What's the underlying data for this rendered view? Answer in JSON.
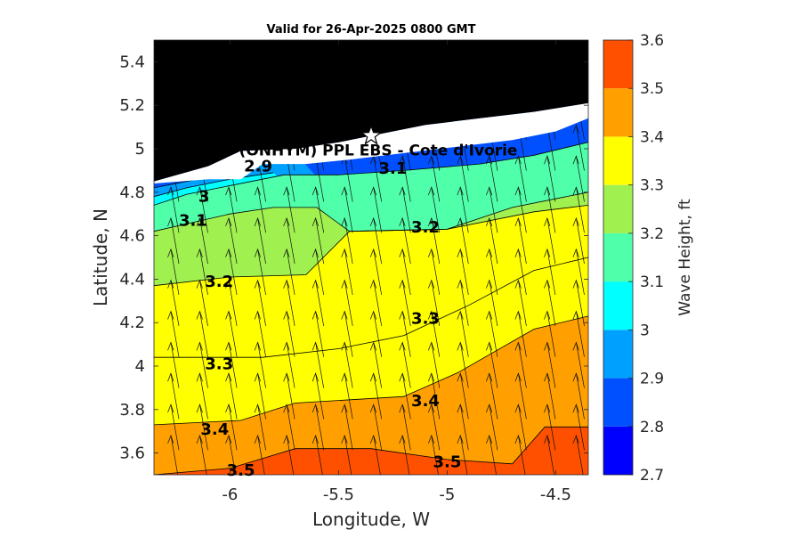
{
  "chart_data": {
    "type": "contour",
    "title": "Valid for 26-Apr-2025 0800 GMT",
    "xlabel": "Longitude, W",
    "ylabel": "Latitude, N",
    "xlim": [
      -6.35,
      -4.35
    ],
    "ylim": [
      3.5,
      5.5
    ],
    "xticks": [
      -6,
      -5.5,
      -5,
      -4.5
    ],
    "xtick_labels": [
      "-6",
      "-5.5",
      "-5",
      "-4.5"
    ],
    "yticks": [
      3.6,
      3.8,
      4,
      4.2,
      4.4,
      4.6,
      4.8,
      5,
      5.2,
      5.4
    ],
    "ytick_labels": [
      "3.6",
      "3.8",
      "4",
      "4.2",
      "4.4",
      "4.6",
      "4.8",
      "5",
      "5.2",
      "5.4"
    ],
    "colorbar": {
      "label": "Wave Height, ft",
      "ticks": [
        2.7,
        2.8,
        2.9,
        3,
        3.1,
        3.2,
        3.3,
        3.4,
        3.5,
        3.6
      ],
      "tick_labels": [
        "2.7",
        "2.8",
        "2.9",
        "3",
        "3.1",
        "3.2",
        "3.3",
        "3.4",
        "3.5",
        "3.6"
      ],
      "colors": [
        "#0000ff",
        "#0050ff",
        "#00a0ff",
        "#00ffff",
        "#50ffaa",
        "#a0f050",
        "#ffff00",
        "#ffa000",
        "#ff5000"
      ]
    },
    "contour_levels": [
      {
        "level": "2.9",
        "points": [
          [
            -6.35,
            4.82
          ],
          [
            -6.15,
            4.86
          ],
          [
            -5.95,
            4.92
          ],
          [
            -5.8,
            4.96
          ],
          [
            -5.7,
            4.98
          ]
        ]
      },
      {
        "level": "3",
        "points": [
          [
            -6.35,
            4.78
          ],
          [
            -6.2,
            4.82
          ],
          [
            -6.0,
            4.86
          ],
          [
            -5.8,
            4.89
          ]
        ]
      },
      {
        "level": "3.1",
        "points": [
          [
            -6.35,
            4.74
          ],
          [
            -6.2,
            4.79
          ],
          [
            -5.75,
            4.88
          ],
          [
            -5.5,
            4.88
          ],
          [
            -5.2,
            4.9
          ],
          [
            -4.85,
            4.93
          ],
          [
            -4.6,
            4.97
          ],
          [
            -4.35,
            5.03
          ]
        ]
      },
      {
        "level": "3.2",
        "points": [
          [
            -6.35,
            4.62
          ],
          [
            -6.0,
            4.7
          ],
          [
            -5.8,
            4.73
          ],
          [
            -5.6,
            4.73
          ],
          [
            -5.45,
            4.62
          ],
          [
            -5.0,
            4.63
          ],
          [
            -4.7,
            4.73
          ],
          [
            -4.35,
            4.8
          ]
        ]
      },
      {
        "level": "3.3",
        "points": [
          [
            -6.35,
            4.37
          ],
          [
            -6.0,
            4.41
          ],
          [
            -5.65,
            4.42
          ],
          [
            -5.45,
            4.62
          ],
          [
            -5.0,
            4.63
          ],
          [
            -4.6,
            4.71
          ],
          [
            -4.35,
            4.74
          ]
        ]
      },
      {
        "level": "3.3",
        "points": [
          [
            -6.35,
            4.04
          ],
          [
            -5.85,
            4.04
          ],
          [
            -5.5,
            4.08
          ],
          [
            -5.2,
            4.14
          ],
          [
            -4.9,
            4.28
          ],
          [
            -4.6,
            4.44
          ],
          [
            -4.35,
            4.5
          ]
        ]
      },
      {
        "level": "3.4",
        "points": [
          [
            -6.35,
            3.73
          ],
          [
            -5.95,
            3.75
          ],
          [
            -5.7,
            3.83
          ],
          [
            -5.2,
            3.86
          ],
          [
            -4.95,
            3.97
          ],
          [
            -4.6,
            4.17
          ],
          [
            -4.35,
            4.23
          ]
        ]
      },
      {
        "level": "3.5",
        "points": [
          [
            -6.35,
            3.5
          ],
          [
            -6.0,
            3.53
          ],
          [
            -5.7,
            3.62
          ],
          [
            -5.35,
            3.62
          ],
          [
            -5.0,
            3.57
          ],
          [
            -4.7,
            3.55
          ],
          [
            -4.55,
            3.72
          ],
          [
            -4.35,
            3.72
          ]
        ]
      }
    ],
    "contour_labels": [
      {
        "text": "2.9",
        "x": -5.87,
        "y": 4.92
      },
      {
        "text": "3",
        "x": -6.12,
        "y": 4.78
      },
      {
        "text": "3.1",
        "x": -6.17,
        "y": 4.67
      },
      {
        "text": "3.1",
        "x": -5.25,
        "y": 4.91
      },
      {
        "text": "3.2",
        "x": -6.05,
        "y": 4.39
      },
      {
        "text": "3.2",
        "x": -5.1,
        "y": 4.64
      },
      {
        "text": "3.3",
        "x": -6.05,
        "y": 4.01
      },
      {
        "text": "3.3",
        "x": -5.1,
        "y": 4.22
      },
      {
        "text": "3.4",
        "x": -6.07,
        "y": 3.71
      },
      {
        "text": "3.4",
        "x": -5.1,
        "y": 3.84
      },
      {
        "text": "3.5",
        "x": -5.95,
        "y": 3.52
      },
      {
        "text": "3.5",
        "x": -5.0,
        "y": 3.56
      }
    ],
    "station": {
      "name": "(ONHYM) PPL EBS - Cote d'Ivorie",
      "lon": -5.35,
      "lat": 5.06
    },
    "wave_direction": "arrows pointing roughly north (slightly north-northwest) across the domain",
    "land": "black landmass above the coastline along the top of the domain"
  }
}
